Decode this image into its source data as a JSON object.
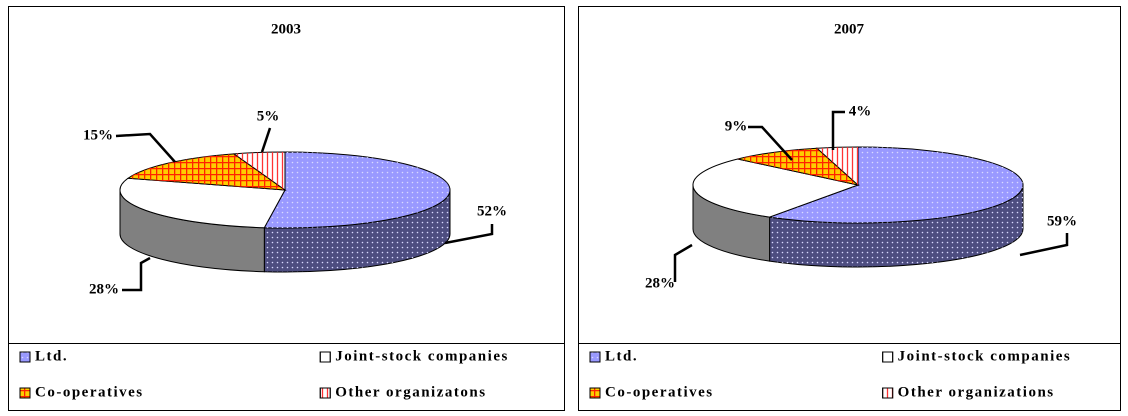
{
  "chart_data": [
    {
      "type": "pie",
      "title": "2003",
      "categories": [
        "Ltd.",
        "Joint-stock companies",
        "Co-operatives",
        "Other organizatons"
      ],
      "values": [
        52,
        28,
        15,
        5
      ],
      "value_labels": [
        "52%",
        "28%",
        "15%",
        "5%"
      ],
      "colors": [
        "#9999ff",
        "#ffffff",
        "#ffcc00",
        "#ffffff"
      ]
    },
    {
      "type": "pie",
      "title": "2007",
      "categories": [
        "Ltd.",
        "Joint-stock companies",
        "Co-operatives",
        "Other organizations"
      ],
      "values": [
        59,
        28,
        9,
        4
      ],
      "value_labels": [
        "59%",
        "28%",
        "9%",
        "4%"
      ],
      "colors": [
        "#9999ff",
        "#ffffff",
        "#ffcc00",
        "#ffffff"
      ]
    }
  ]
}
